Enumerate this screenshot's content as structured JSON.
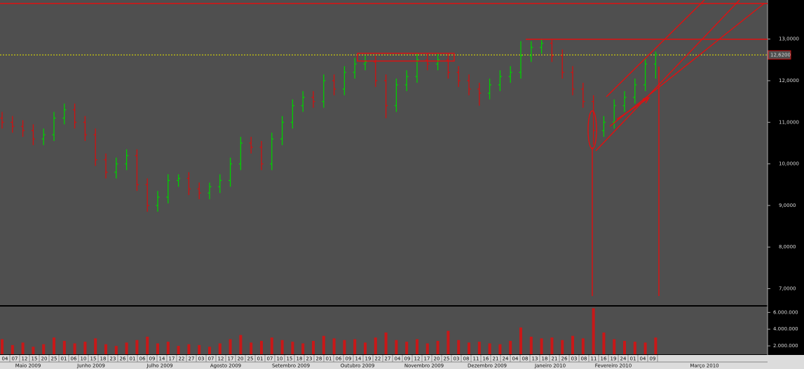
{
  "chart_data": {
    "type": "ohlc",
    "up_color": "#00d000",
    "down_color": "#d01010",
    "ylim": [
      6.62,
      13.94
    ],
    "yticks": [
      {
        "value": 13,
        "label": "13,0000"
      },
      {
        "value": 12,
        "label": "12,0000"
      },
      {
        "value": 11,
        "label": "11,0000"
      },
      {
        "value": 10,
        "label": "10,0000"
      },
      {
        "value": 9,
        "label": "9,0000"
      },
      {
        "value": 8,
        "label": "8,0000"
      },
      {
        "value": 7,
        "label": "7,0000"
      }
    ],
    "last_price": {
      "value": 12.62,
      "label": "12,6200",
      "color": "#e6e600"
    },
    "ohlc": [
      [
        11.1,
        11.25,
        10.85,
        11.0
      ],
      [
        11.0,
        11.15,
        10.75,
        10.9
      ],
      [
        10.9,
        11.05,
        10.65,
        10.8
      ],
      [
        10.8,
        10.95,
        10.45,
        10.6
      ],
      [
        10.6,
        10.85,
        10.45,
        10.7
      ],
      [
        10.7,
        11.25,
        10.55,
        11.1
      ],
      [
        11.1,
        11.45,
        10.95,
        11.3
      ],
      [
        11.3,
        11.45,
        10.85,
        11.0
      ],
      [
        11.0,
        11.15,
        10.55,
        10.7
      ],
      [
        10.7,
        10.85,
        9.95,
        10.1
      ],
      [
        10.1,
        10.25,
        9.65,
        9.8
      ],
      [
        9.8,
        10.15,
        9.65,
        10.0
      ],
      [
        10.0,
        10.35,
        9.85,
        10.2
      ],
      [
        10.2,
        10.35,
        9.35,
        9.5
      ],
      [
        9.5,
        9.65,
        8.85,
        9.0
      ],
      [
        9.0,
        9.35,
        8.85,
        9.2
      ],
      [
        9.2,
        9.75,
        9.05,
        9.6
      ],
      [
        9.6,
        9.75,
        9.45,
        9.65
      ],
      [
        9.65,
        9.8,
        9.25,
        9.4
      ],
      [
        9.4,
        9.55,
        9.15,
        9.3
      ],
      [
        9.3,
        9.55,
        9.15,
        9.45
      ],
      [
        9.45,
        9.75,
        9.3,
        9.6
      ],
      [
        9.6,
        10.15,
        9.45,
        10.0
      ],
      [
        10.0,
        10.65,
        9.85,
        10.5
      ],
      [
        10.5,
        10.65,
        10.25,
        10.4
      ],
      [
        10.4,
        10.55,
        9.85,
        10.0
      ],
      [
        10.0,
        10.75,
        9.85,
        10.6
      ],
      [
        10.6,
        11.15,
        10.45,
        11.0
      ],
      [
        11.0,
        11.55,
        10.85,
        11.4
      ],
      [
        11.4,
        11.75,
        11.25,
        11.6
      ],
      [
        11.6,
        11.75,
        11.35,
        11.5
      ],
      [
        11.5,
        12.15,
        11.35,
        12.0
      ],
      [
        12.0,
        12.15,
        11.65,
        11.8
      ],
      [
        11.8,
        12.35,
        11.65,
        12.2
      ],
      [
        12.2,
        12.55,
        12.05,
        12.4
      ],
      [
        12.4,
        12.6,
        12.25,
        12.45
      ],
      [
        12.45,
        12.6,
        11.85,
        12.0
      ],
      [
        12.0,
        12.15,
        11.1,
        11.4
      ],
      [
        11.4,
        12.05,
        11.25,
        11.9
      ],
      [
        11.9,
        12.25,
        11.75,
        12.1
      ],
      [
        12.1,
        12.65,
        11.95,
        12.5
      ],
      [
        12.5,
        12.65,
        12.25,
        12.4
      ],
      [
        12.4,
        12.65,
        12.25,
        12.5
      ],
      [
        12.5,
        12.65,
        12.05,
        12.2
      ],
      [
        12.2,
        12.35,
        11.85,
        12.0
      ],
      [
        12.0,
        12.15,
        11.65,
        11.8
      ],
      [
        11.8,
        11.95,
        11.4,
        11.7
      ],
      [
        11.7,
        12.05,
        11.55,
        11.9
      ],
      [
        11.9,
        12.25,
        11.75,
        12.1
      ],
      [
        12.1,
        12.35,
        11.95,
        12.2
      ],
      [
        12.2,
        12.95,
        12.05,
        12.6
      ],
      [
        12.6,
        12.95,
        12.45,
        12.8
      ],
      [
        12.8,
        13.0,
        12.65,
        12.9
      ],
      [
        12.9,
        13.0,
        12.45,
        12.6
      ],
      [
        12.6,
        12.75,
        12.05,
        12.2
      ],
      [
        12.2,
        12.35,
        11.65,
        11.8
      ],
      [
        11.8,
        11.95,
        11.35,
        11.5
      ],
      [
        11.5,
        11.65,
        10.45,
        10.8
      ],
      [
        10.8,
        11.15,
        10.65,
        11.0
      ],
      [
        11.0,
        11.55,
        10.85,
        11.4
      ],
      [
        11.4,
        11.75,
        11.25,
        11.6
      ],
      [
        11.6,
        12.05,
        11.45,
        11.9
      ],
      [
        11.9,
        12.55,
        11.75,
        12.4
      ],
      [
        12.4,
        12.7,
        12.05,
        12.62
      ]
    ],
    "volume": {
      "color": "#c81818",
      "ylim": [
        1000000,
        6700000
      ],
      "yticks": [
        {
          "value": 6000000,
          "label": "6.000.000"
        },
        {
          "value": 4000000,
          "label": "4.000.000"
        },
        {
          "value": 2000000,
          "label": "2.000.000"
        }
      ],
      "values": [
        2800000,
        2100000,
        2400000,
        1900000,
        2200000,
        3000000,
        2600000,
        2300000,
        2500000,
        2900000,
        2200000,
        2000000,
        2400000,
        2700000,
        3100000,
        2300000,
        2500000,
        2000000,
        2200000,
        2100000,
        1900000,
        2300000,
        2800000,
        3300000,
        2400000,
        2600000,
        3000000,
        2700000,
        2500000,
        2300000,
        2600000,
        3200000,
        2900000,
        2700000,
        2800000,
        2400000,
        3000000,
        3600000,
        2700000,
        2500000,
        2800000,
        2300000,
        2600000,
        3800000,
        2700000,
        2400000,
        2500000,
        2300000,
        2200000,
        2600000,
        4200000,
        3100000,
        2900000,
        3000000,
        2700000,
        3200000,
        2900000,
        6500000,
        3600000,
        2800000,
        2600000,
        2500000,
        2400000,
        3000000
      ]
    },
    "day_labels": [
      "04",
      "07",
      "12",
      "15",
      "20",
      "25",
      "01",
      "06",
      "10",
      "15",
      "18",
      "23",
      "26",
      "01",
      "06",
      "09",
      "14",
      "17",
      "22",
      "27",
      "03",
      "07",
      "12",
      "17",
      "20",
      "25",
      "01",
      "07",
      "10",
      "15",
      "18",
      "23",
      "28",
      "01",
      "06",
      "09",
      "14",
      "19",
      "22",
      "27",
      "04",
      "09",
      "12",
      "17",
      "20",
      "25",
      "03",
      "08",
      "11",
      "16",
      "21",
      "24",
      "04",
      "08",
      "13",
      "18",
      "21",
      "26",
      "03",
      "08",
      "11",
      "16",
      "19",
      "24",
      "01",
      "04",
      "09"
    ],
    "month_labels": [
      "Maio 2009",
      "Junho 2009",
      "Julho 2009",
      "Agosto 2009",
      "Setembro 2009",
      "Outubro 2009",
      "Novembro 2009",
      "Dezembro 2009",
      "Janeiro 2010",
      "Fevereiro 2010",
      "Março 2010"
    ]
  }
}
